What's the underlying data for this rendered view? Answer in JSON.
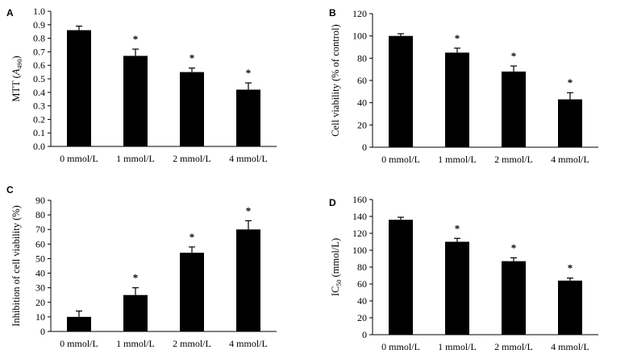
{
  "figure": {
    "background": "#ffffff",
    "bar_color": "#000000"
  },
  "chart_data": [
    {
      "panel": "A",
      "type": "bar",
      "categories": [
        "0 mmol/L",
        "1 mmol/L",
        "2 mmol/L",
        "4 mmol/L"
      ],
      "values": [
        0.86,
        0.67,
        0.55,
        0.42
      ],
      "errors": [
        0.03,
        0.05,
        0.03,
        0.05
      ],
      "significance": [
        "",
        "*",
        "*",
        "*"
      ],
      "ylabel_main": "MTT (",
      "ylabel_italic": "A",
      "ylabel_sub": "490",
      "ylabel_end": ")",
      "ylim": [
        0,
        1.0
      ],
      "yticks": [
        "0.0",
        "0.1",
        "0.2",
        "0.3",
        "0.4",
        "0.5",
        "0.6",
        "0.7",
        "0.8",
        "0.9",
        "1.0"
      ],
      "grid": false
    },
    {
      "panel": "B",
      "type": "bar",
      "categories": [
        "0 mmol/L",
        "1 mmol/L",
        "2 mmol/L",
        "4 mmol/L"
      ],
      "values": [
        100,
        85,
        68,
        43
      ],
      "errors": [
        2,
        4,
        5,
        6
      ],
      "significance": [
        "",
        "*",
        "*",
        "*"
      ],
      "ylabel_main": "Cell viability (% of control)",
      "ylim": [
        0,
        120
      ],
      "yticks": [
        "0",
        "20",
        "40",
        "60",
        "80",
        "100",
        "120"
      ],
      "grid": false
    },
    {
      "panel": "C",
      "type": "bar",
      "categories": [
        "0 mmol/L",
        "1 mmol/L",
        "2 mmol/L",
        "4 mmol/L"
      ],
      "values": [
        10,
        25,
        54,
        70
      ],
      "errors": [
        4,
        5,
        4,
        6
      ],
      "significance": [
        "",
        "*",
        "*",
        "*"
      ],
      "ylabel_main": "Inhibition of cell viability (%)",
      "ylim": [
        0,
        90
      ],
      "yticks": [
        "0",
        "10",
        "20",
        "30",
        "40",
        "50",
        "60",
        "70",
        "80",
        "90"
      ],
      "grid": false
    },
    {
      "panel": "D",
      "type": "bar",
      "categories": [
        "0 mmol/L",
        "1 mmol/L",
        "2 mmol/L",
        "4 mmol/L"
      ],
      "values": [
        136,
        110,
        87,
        64
      ],
      "errors": [
        3,
        4,
        4,
        3
      ],
      "significance": [
        "",
        "*",
        "*",
        "*"
      ],
      "ylabel_main": "IC",
      "ylabel_sub": "50",
      "ylabel_end": " (mmol/L)",
      "ylim": [
        0,
        160
      ],
      "yticks": [
        "0",
        "20",
        "40",
        "60",
        "80",
        "100",
        "120",
        "140",
        "160"
      ],
      "grid": false
    }
  ]
}
